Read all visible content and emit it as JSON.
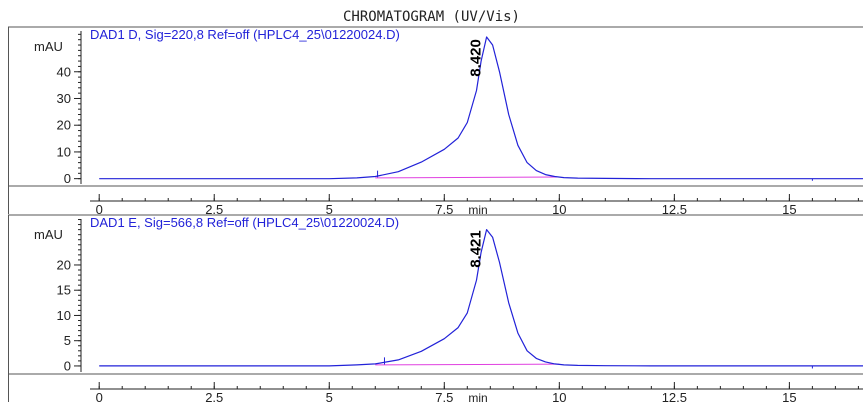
{
  "page_title": "CHROMATOGRAM (UV/Vis)",
  "colors": {
    "trace": "#2222d8",
    "baseline": "#e040e0",
    "axis": "#222222",
    "frame": "#555555"
  },
  "chart_data": [
    {
      "type": "line",
      "title": "DAD1 D, Sig=220,8 Ref=off (HPLC4_25\\01220024.D)",
      "xlabel": "min",
      "ylabel": "mAU",
      "xlim": [
        -0.2,
        16.6
      ],
      "ylim": [
        -2,
        56
      ],
      "x_ticks": [
        0,
        2.5,
        5,
        7.5,
        10,
        12.5,
        15
      ],
      "x_tick_labels": [
        "0",
        "2.5",
        "5",
        "7.5",
        "10",
        "12.5",
        "15"
      ],
      "y_ticks": [
        0,
        10,
        20,
        30,
        40
      ],
      "y_tick_labels": [
        "0",
        "10",
        "20",
        "30",
        "40"
      ],
      "grid": false,
      "peaks": [
        {
          "label": "8.420",
          "rt": 8.42,
          "height": 53
        }
      ],
      "series": [
        {
          "x": [
            0,
            5.0,
            5.6,
            6.0,
            6.5,
            7.0,
            7.5,
            7.8,
            8.0,
            8.2,
            8.3,
            8.42,
            8.55,
            8.7,
            8.9,
            9.1,
            9.3,
            9.5,
            9.7,
            9.9,
            10.1,
            10.4,
            11.0,
            12.0,
            15.0,
            16.6
          ],
          "y": [
            0,
            0,
            0.3,
            0.8,
            2.6,
            6.2,
            11.0,
            15.2,
            21.0,
            33.0,
            44.0,
            53.0,
            50.0,
            40.0,
            24.0,
            12.5,
            6.0,
            3.0,
            1.5,
            0.8,
            0.4,
            0.2,
            0.1,
            0,
            0,
            0
          ]
        }
      ],
      "baseline": {
        "x": [
          6.0,
          10.0
        ],
        "y": [
          0.3,
          0.6
        ]
      },
      "annotations": [
        {
          "x": 6.05,
          "y": 0.5,
          "height": 2.5
        },
        {
          "x": 15.5,
          "y": 0,
          "height": -0.8
        }
      ]
    },
    {
      "type": "line",
      "title": "DAD1 E, Sig=566,8 Ref=off (HPLC4_25\\01220024.D)",
      "xlabel": "min",
      "ylabel": "mAU",
      "xlim": [
        -0.2,
        16.6
      ],
      "ylim": [
        -1.2,
        29.5
      ],
      "x_ticks": [
        0,
        2.5,
        5,
        7.5,
        10,
        12.5,
        15
      ],
      "x_tick_labels": [
        "0",
        "2.5",
        "5",
        "7.5",
        "10",
        "12.5",
        "15"
      ],
      "y_ticks": [
        0,
        5,
        10,
        15,
        20
      ],
      "y_tick_labels": [
        "0",
        "5",
        "10",
        "15",
        "20"
      ],
      "grid": false,
      "peaks": [
        {
          "label": "8.421",
          "rt": 8.421,
          "height": 27
        }
      ],
      "series": [
        {
          "x": [
            0,
            5.0,
            5.6,
            6.0,
            6.5,
            7.0,
            7.5,
            7.8,
            8.0,
            8.2,
            8.3,
            8.42,
            8.55,
            8.7,
            8.9,
            9.1,
            9.3,
            9.5,
            9.7,
            9.9,
            10.1,
            10.4,
            11.0,
            12.0,
            15.0,
            16.6
          ],
          "y": [
            0,
            0,
            0.2,
            0.4,
            1.2,
            2.9,
            5.4,
            7.6,
            10.5,
            17.0,
            22.5,
            27.0,
            25.5,
            20.5,
            12.5,
            6.5,
            3.0,
            1.5,
            0.8,
            0.4,
            0.2,
            0.1,
            0.05,
            0,
            0,
            0
          ]
        }
      ],
      "baseline": {
        "x": [
          6.0,
          10.0
        ],
        "y": [
          0.2,
          0.35
        ]
      },
      "annotations": [
        {
          "x": 6.2,
          "y": 0.3,
          "height": 1.4
        },
        {
          "x": 15.5,
          "y": 0,
          "height": -0.5
        }
      ]
    }
  ]
}
